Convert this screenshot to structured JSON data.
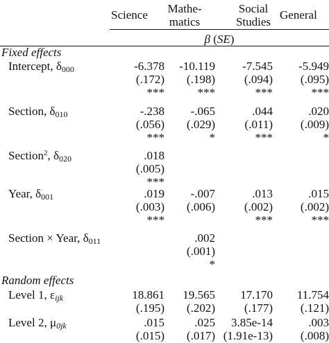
{
  "header": {
    "science": "Science",
    "math_line1": "Mathe-",
    "math_line2": "matics",
    "social_line1": "Social",
    "social_line2": "Studies",
    "general": "General",
    "beta_label": "β",
    "se_label": "(SE)"
  },
  "sections": {
    "fixed": "Fixed effects",
    "random": "Random effects"
  },
  "rows": [
    {
      "label_text": "Intercept, δ",
      "label_sub": "000",
      "science": {
        "est": "-6.378",
        "se": "(.172)",
        "sig": "***"
      },
      "math": {
        "est": "-10.119",
        "se": "(.198)",
        "sig": "***"
      },
      "social": {
        "est": "-7.545",
        "se": "(.094)",
        "sig": "***"
      },
      "general": {
        "est": "-5.949",
        "se": "(.095)",
        "sig": "***"
      }
    },
    {
      "label_text": "Section, δ",
      "label_sub": "010",
      "science": {
        "est": "-.238",
        "se": "(.056)",
        "sig": "***"
      },
      "math": {
        "est": "-.065",
        "se": "(.029)",
        "sig": "*"
      },
      "social": {
        "est": ".044",
        "se": "(.011)",
        "sig": "***"
      },
      "general": {
        "est": ".020",
        "se": "(.009)",
        "sig": "*"
      }
    },
    {
      "label_text": "Section",
      "label_sup": "2",
      "label_text2": ", δ",
      "label_sub": "020",
      "science": {
        "est": ".018",
        "se": "(.005)",
        "sig": "***"
      }
    },
    {
      "label_text": "Year, δ",
      "label_sub": "001",
      "science": {
        "est": ".019",
        "se": "(.003)",
        "sig": "***"
      },
      "math": {
        "est": "-.007",
        "se": "(.006)",
        "sig": ""
      },
      "social": {
        "est": ".013",
        "se": "(.002)",
        "sig": "***"
      },
      "general": {
        "est": ".015",
        "se": "(.002)",
        "sig": "***"
      }
    },
    {
      "label_text": "Section × Year, δ",
      "label_sub": "011",
      "math": {
        "est": ".002",
        "se": "(.001)",
        "sig": "*"
      }
    }
  ],
  "random_rows": [
    {
      "label_text": "Level 1, ε",
      "label_sub": "ijk",
      "science": {
        "est": "18.861",
        "se": "(.195)"
      },
      "math": {
        "est": "19.565",
        "se": "(.202)"
      },
      "social": {
        "est": "17.170",
        "se": "(.177)"
      },
      "general": {
        "est": "11.754",
        "se": "(.121)"
      }
    },
    {
      "label_text": "Level 2, μ",
      "label_sub": "0jk",
      "science": {
        "est": ".015",
        "se": "(.015)"
      },
      "math": {
        "est": ".025",
        "se": "(.017)"
      },
      "social": {
        "est": "3.85e-14",
        "se": "(1.91e-13)"
      },
      "general": {
        "est": ".003",
        "se": "(.008)"
      }
    }
  ]
}
